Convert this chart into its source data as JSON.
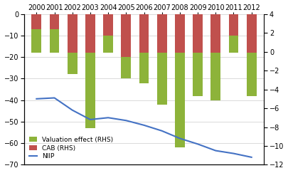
{
  "years": [
    2000,
    2001,
    2002,
    2003,
    2004,
    2005,
    2006,
    2007,
    2008,
    2009,
    2010,
    2011,
    2012
  ],
  "cab": [
    -18,
    -18,
    -18,
    -18,
    -18,
    -20,
    -18,
    -18,
    -18,
    -18,
    -18,
    -18,
    -18
  ],
  "valuation_effect": [
    11,
    11,
    -10,
    -35,
    8,
    -10,
    -14,
    -24,
    -44,
    -20,
    -22,
    8,
    -20
  ],
  "niip": [
    -5.0,
    -4.9,
    -6.2,
    -7.2,
    -7.0,
    -7.3,
    -7.8,
    -8.4,
    -9.2,
    -9.8,
    -10.5,
    -10.8,
    -11.2
  ],
  "bar_width": 0.55,
  "valuation_color": "#8DB33A",
  "cab_color": "#C0504D",
  "niip_color": "#4472C4",
  "ylim_left": [
    -70,
    0
  ],
  "ylim_right": [
    -12,
    4
  ],
  "yticks_left": [
    0,
    -10,
    -20,
    -30,
    -40,
    -50,
    -60,
    -70
  ],
  "yticks_right": [
    4,
    2,
    0,
    -2,
    -4,
    -6,
    -8,
    -10,
    -12
  ],
  "legend_labels": [
    "Valuation effect (RHS)",
    "CAB (RHS)",
    "NIIP"
  ],
  "bg_color": "#FFFFFF",
  "grid_color": "#CCCCCC"
}
